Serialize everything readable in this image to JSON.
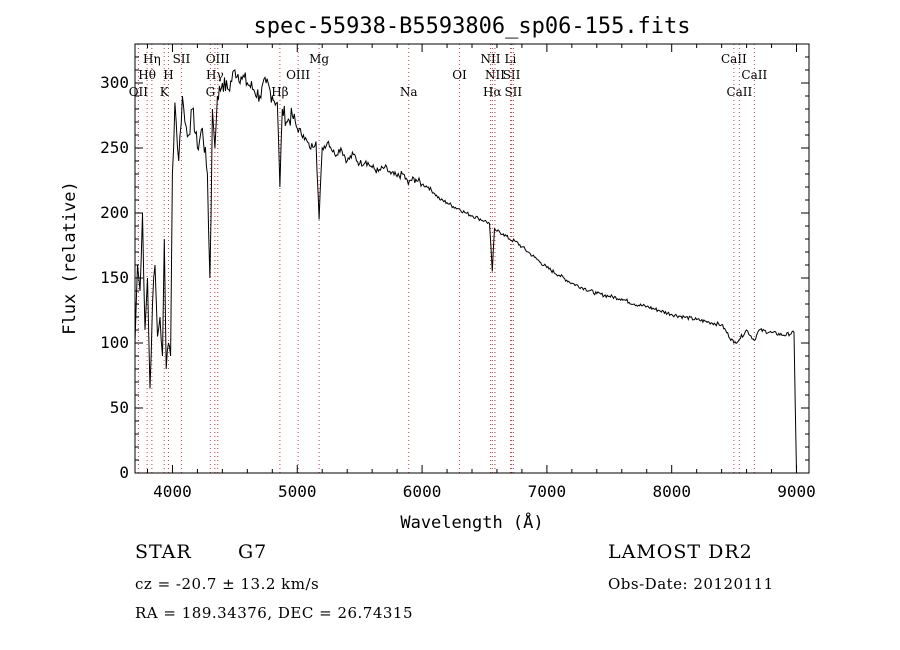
{
  "chart_data": {
    "type": "line",
    "title": "spec-55938-B5593806_sp06-155.fits",
    "xlabel": "Wavelength (Å)",
    "ylabel": "Flux (relative)",
    "xlim": [
      3700,
      9100
    ],
    "ylim": [
      0,
      330
    ],
    "x_ticks": [
      4000,
      5000,
      6000,
      7000,
      8000,
      9000
    ],
    "y_ticks": [
      0,
      50,
      100,
      150,
      200,
      250,
      300
    ],
    "grid": false,
    "series": [
      {
        "color": "#000000",
        "x": [
          3700,
          3720,
          3740,
          3760,
          3780,
          3800,
          3820,
          3840,
          3860,
          3880,
          3900,
          3920,
          3935,
          3950,
          3968,
          3985,
          4000,
          4020,
          4050,
          4080,
          4100,
          4130,
          4160,
          4200,
          4240,
          4280,
          4300,
          4310,
          4320,
          4340,
          4360,
          4400,
          4450,
          4500,
          4550,
          4600,
          4650,
          4700,
          4750,
          4800,
          4840,
          4861,
          4880,
          4920,
          4960,
          5000,
          5050,
          5100,
          5150,
          5175,
          5200,
          5250,
          5300,
          5350,
          5400,
          5450,
          5500,
          5550,
          5600,
          5650,
          5700,
          5750,
          5800,
          5850,
          5890,
          5900,
          5950,
          6000,
          6050,
          6100,
          6150,
          6200,
          6250,
          6300,
          6350,
          6400,
          6450,
          6500,
          6540,
          6563,
          6580,
          6600,
          6650,
          6700,
          6750,
          6800,
          6850,
          6900,
          6950,
          7000,
          7100,
          7200,
          7300,
          7400,
          7500,
          7600,
          7700,
          7800,
          7900,
          8000,
          8100,
          8200,
          8300,
          8400,
          8498,
          8542,
          8600,
          8662,
          8700,
          8800,
          8900,
          8980,
          8990,
          9000
        ],
        "values": [
          100,
          160,
          140,
          200,
          110,
          150,
          65,
          130,
          160,
          105,
          120,
          90,
          180,
          80,
          100,
          90,
          230,
          285,
          240,
          290,
          270,
          260,
          280,
          250,
          265,
          230,
          150,
          200,
          280,
          250,
          290,
          300,
          295,
          310,
          305,
          300,
          295,
          290,
          300,
          290,
          285,
          220,
          280,
          270,
          275,
          265,
          260,
          250,
          255,
          195,
          250,
          255,
          245,
          250,
          240,
          245,
          238,
          240,
          235,
          232,
          235,
          230,
          228,
          230,
          222,
          225,
          226,
          222,
          220,
          215,
          210,
          208,
          205,
          203,
          200,
          198,
          196,
          194,
          192,
          155,
          188,
          186,
          184,
          180,
          178,
          174,
          170,
          166,
          162,
          158,
          152,
          146,
          142,
          138,
          136,
          134,
          130,
          128,
          125,
          122,
          120,
          118,
          116,
          114,
          100,
          103,
          110,
          102,
          110,
          108,
          106,
          108,
          50,
          0
        ]
      }
    ],
    "line_markers": [
      {
        "label": "Hη",
        "x": 3835,
        "row": 1
      },
      {
        "label": "Hθ",
        "x": 3797,
        "row": 2
      },
      {
        "label": "OII",
        "x": 3727,
        "row": 3
      },
      {
        "label": "H",
        "x": 3968,
        "row": 2
      },
      {
        "label": "K",
        "x": 3934,
        "row": 3
      },
      {
        "label": "SII",
        "x": 4072,
        "row": 1
      },
      {
        "label": "OIII",
        "x": 4363,
        "row": 1
      },
      {
        "label": "Hγ",
        "x": 4340,
        "row": 2
      },
      {
        "label": "G",
        "x": 4304,
        "row": 3
      },
      {
        "label": "Hβ",
        "x": 4861,
        "row": 3
      },
      {
        "label": "OIII",
        "x": 5007,
        "row": 2
      },
      {
        "label": "Mg",
        "x": 5175,
        "row": 1
      },
      {
        "label": "Na",
        "x": 5893,
        "row": 3
      },
      {
        "label": "OI",
        "x": 6300,
        "row": 2
      },
      {
        "label": "NII",
        "x": 6548,
        "row": 1
      },
      {
        "label": "Li",
        "x": 6708,
        "row": 1
      },
      {
        "label": "NII",
        "x": 6584,
        "row": 2
      },
      {
        "label": "SII",
        "x": 6717,
        "row": 2
      },
      {
        "label": "Hα",
        "x": 6563,
        "row": 3
      },
      {
        "label": "SII",
        "x": 6731,
        "row": 3
      },
      {
        "label": "CaII",
        "x": 8498,
        "row": 1
      },
      {
        "label": "CaII",
        "x": 8662,
        "row": 2
      },
      {
        "label": "CaII",
        "x": 8542,
        "row": 3
      }
    ]
  },
  "info": {
    "object_class": "STAR",
    "subclass": "G7",
    "survey": "LAMOST DR2",
    "redshift": "cz = -20.7 ± 13.2 km/s",
    "obs_date": "Obs-Date: 20120111",
    "coords": "RA = 189.34376, DEC =  26.74315"
  }
}
